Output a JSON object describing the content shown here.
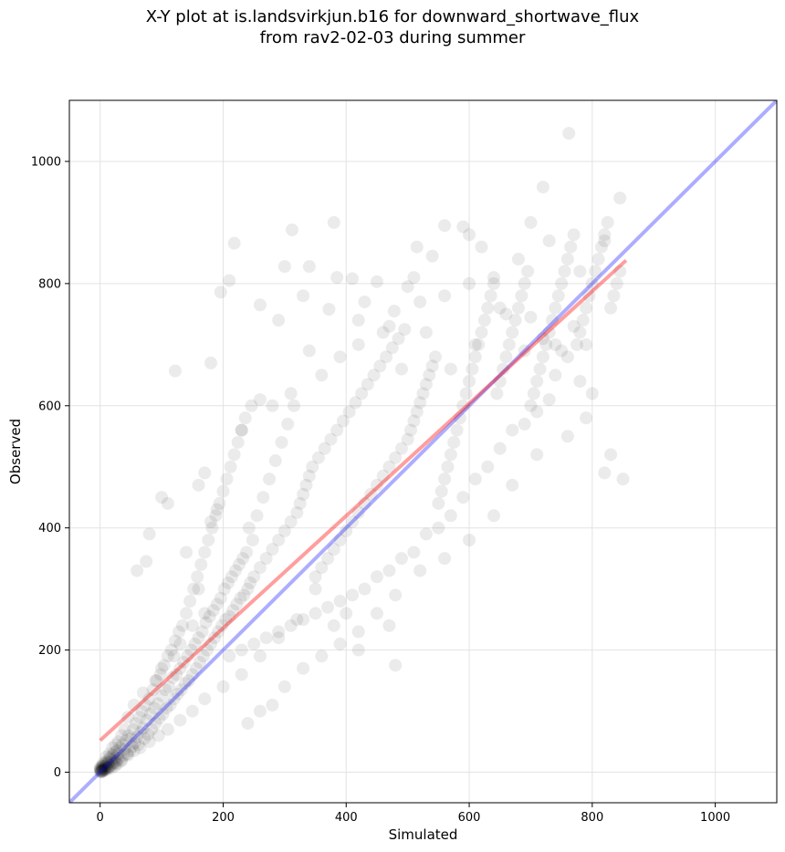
{
  "chart_data": {
    "type": "scatter",
    "title": "X-Y plot at is.landsvirkjun.b16 for downward_shortwave_flux",
    "subtitle": "from rav2-02-03 during summer",
    "xlabel": "Simulated",
    "ylabel": "Observed",
    "xlim": [
      -50,
      1100
    ],
    "ylim": [
      -50,
      1100
    ],
    "xticks": [
      0,
      200,
      400,
      600,
      800,
      1000
    ],
    "yticks": [
      0,
      200,
      400,
      600,
      800,
      1000
    ],
    "grid": true,
    "point_color": "#000000",
    "point_alpha": 0.08,
    "regression_line": {
      "color": "#ff0000",
      "x": [
        0,
        855
      ],
      "y": [
        52,
        838
      ]
    },
    "one_to_one_line": {
      "color": "#0000ff",
      "x": [
        -50,
        1100
      ],
      "y": [
        -50,
        1100
      ]
    },
    "points": [
      [
        0,
        2
      ],
      [
        1,
        5
      ],
      [
        2,
        1
      ],
      [
        3,
        8
      ],
      [
        4,
        3
      ],
      [
        5,
        12
      ],
      [
        6,
        4
      ],
      [
        7,
        10
      ],
      [
        8,
        6
      ],
      [
        9,
        15
      ],
      [
        10,
        8
      ],
      [
        11,
        18
      ],
      [
        12,
        5
      ],
      [
        13,
        14
      ],
      [
        14,
        9
      ],
      [
        15,
        22
      ],
      [
        16,
        11
      ],
      [
        17,
        25
      ],
      [
        18,
        7
      ],
      [
        19,
        20
      ],
      [
        20,
        13
      ],
      [
        21,
        28
      ],
      [
        22,
        16
      ],
      [
        23,
        32
      ],
      [
        24,
        10
      ],
      [
        25,
        24
      ],
      [
        26,
        19
      ],
      [
        27,
        35
      ],
      [
        28,
        14
      ],
      [
        29,
        30
      ],
      [
        30,
        22
      ],
      [
        32,
        40
      ],
      [
        34,
        18
      ],
      [
        36,
        45
      ],
      [
        38,
        27
      ],
      [
        40,
        38
      ],
      [
        42,
        52
      ],
      [
        44,
        30
      ],
      [
        46,
        60
      ],
      [
        48,
        35
      ],
      [
        50,
        55
      ],
      [
        52,
        42
      ],
      [
        54,
        70
      ],
      [
        56,
        48
      ],
      [
        58,
        80
      ],
      [
        60,
        58
      ],
      [
        62,
        45
      ],
      [
        64,
        90
      ],
      [
        66,
        65
      ],
      [
        68,
        100
      ],
      [
        70,
        72
      ],
      [
        72,
        55
      ],
      [
        74,
        110
      ],
      [
        76,
        85
      ],
      [
        78,
        62
      ],
      [
        80,
        120
      ],
      [
        82,
        95
      ],
      [
        84,
        70
      ],
      [
        86,
        135
      ],
      [
        88,
        105
      ],
      [
        90,
        80
      ],
      [
        92,
        150
      ],
      [
        94,
        112
      ],
      [
        96,
        88
      ],
      [
        98,
        160
      ],
      [
        100,
        125
      ],
      [
        102,
        95
      ],
      [
        104,
        175
      ],
      [
        106,
        135
      ],
      [
        108,
        105
      ],
      [
        110,
        190
      ],
      [
        112,
        140
      ],
      [
        114,
        110
      ],
      [
        116,
        200
      ],
      [
        118,
        155
      ],
      [
        120,
        120
      ],
      [
        122,
        215
      ],
      [
        124,
        160
      ],
      [
        126,
        128
      ],
      [
        128,
        230
      ],
      [
        130,
        170
      ],
      [
        132,
        135
      ],
      [
        134,
        240
      ],
      [
        136,
        180
      ],
      [
        138,
        145
      ],
      [
        140,
        260
      ],
      [
        142,
        190
      ],
      [
        144,
        150
      ],
      [
        146,
        280
      ],
      [
        148,
        200
      ],
      [
        150,
        160
      ],
      [
        152,
        300
      ],
      [
        154,
        210
      ],
      [
        156,
        170
      ],
      [
        158,
        320
      ],
      [
        160,
        220
      ],
      [
        162,
        180
      ],
      [
        164,
        340
      ],
      [
        166,
        230
      ],
      [
        168,
        190
      ],
      [
        170,
        360
      ],
      [
        172,
        245
      ],
      [
        174,
        200
      ],
      [
        176,
        380
      ],
      [
        178,
        255
      ],
      [
        180,
        210
      ],
      [
        182,
        400
      ],
      [
        184,
        265
      ],
      [
        186,
        220
      ],
      [
        188,
        420
      ],
      [
        190,
        275
      ],
      [
        192,
        230
      ],
      [
        194,
        440
      ],
      [
        196,
        285
      ],
      [
        198,
        240
      ],
      [
        200,
        460
      ],
      [
        202,
        300
      ],
      [
        204,
        250
      ],
      [
        206,
        480
      ],
      [
        208,
        310
      ],
      [
        210,
        255
      ],
      [
        212,
        500
      ],
      [
        214,
        320
      ],
      [
        216,
        265
      ],
      [
        218,
        520
      ],
      [
        220,
        330
      ],
      [
        222,
        275
      ],
      [
        224,
        540
      ],
      [
        226,
        340
      ],
      [
        228,
        285
      ],
      [
        230,
        560
      ],
      [
        232,
        350
      ],
      [
        234,
        290
      ],
      [
        236,
        580
      ],
      [
        238,
        360
      ],
      [
        240,
        300
      ],
      [
        242,
        400
      ],
      [
        244,
        310
      ],
      [
        246,
        600
      ],
      [
        248,
        380
      ],
      [
        250,
        320
      ],
      [
        255,
        420
      ],
      [
        260,
        335
      ],
      [
        265,
        450
      ],
      [
        270,
        350
      ],
      [
        275,
        480
      ],
      [
        280,
        365
      ],
      [
        285,
        510
      ],
      [
        290,
        380
      ],
      [
        295,
        540
      ],
      [
        300,
        395
      ],
      [
        305,
        570
      ],
      [
        310,
        410
      ],
      [
        315,
        600
      ],
      [
        320,
        425
      ],
      [
        325,
        440
      ],
      [
        330,
        455
      ],
      [
        335,
        470
      ],
      [
        340,
        485
      ],
      [
        345,
        500
      ],
      [
        350,
        320
      ],
      [
        355,
        515
      ],
      [
        360,
        335
      ],
      [
        365,
        530
      ],
      [
        370,
        350
      ],
      [
        375,
        545
      ],
      [
        380,
        365
      ],
      [
        385,
        560
      ],
      [
        390,
        380
      ],
      [
        395,
        575
      ],
      [
        400,
        395
      ],
      [
        405,
        590
      ],
      [
        410,
        410
      ],
      [
        415,
        605
      ],
      [
        420,
        425
      ],
      [
        425,
        620
      ],
      [
        430,
        440
      ],
      [
        435,
        635
      ],
      [
        440,
        455
      ],
      [
        445,
        650
      ],
      [
        450,
        470
      ],
      [
        455,
        665
      ],
      [
        460,
        485
      ],
      [
        465,
        680
      ],
      [
        470,
        500
      ],
      [
        475,
        695
      ],
      [
        480,
        515
      ],
      [
        485,
        710
      ],
      [
        490,
        530
      ],
      [
        495,
        725
      ],
      [
        500,
        545
      ],
      [
        505,
        560
      ],
      [
        510,
        575
      ],
      [
        515,
        590
      ],
      [
        520,
        605
      ],
      [
        525,
        620
      ],
      [
        530,
        635
      ],
      [
        535,
        650
      ],
      [
        540,
        665
      ],
      [
        545,
        680
      ],
      [
        550,
        440
      ],
      [
        555,
        460
      ],
      [
        560,
        480
      ],
      [
        565,
        500
      ],
      [
        570,
        520
      ],
      [
        575,
        540
      ],
      [
        580,
        560
      ],
      [
        585,
        580
      ],
      [
        590,
        600
      ],
      [
        595,
        620
      ],
      [
        600,
        640
      ],
      [
        605,
        660
      ],
      [
        610,
        680
      ],
      [
        615,
        700
      ],
      [
        620,
        720
      ],
      [
        625,
        740
      ],
      [
        630,
        760
      ],
      [
        635,
        780
      ],
      [
        640,
        800
      ],
      [
        645,
        620
      ],
      [
        650,
        640
      ],
      [
        655,
        660
      ],
      [
        660,
        680
      ],
      [
        665,
        700
      ],
      [
        670,
        720
      ],
      [
        675,
        740
      ],
      [
        680,
        760
      ],
      [
        685,
        780
      ],
      [
        690,
        800
      ],
      [
        695,
        820
      ],
      [
        700,
        600
      ],
      [
        705,
        620
      ],
      [
        710,
        640
      ],
      [
        715,
        660
      ],
      [
        720,
        680
      ],
      [
        725,
        700
      ],
      [
        730,
        720
      ],
      [
        735,
        740
      ],
      [
        740,
        760
      ],
      [
        745,
        780
      ],
      [
        750,
        800
      ],
      [
        755,
        820
      ],
      [
        760,
        840
      ],
      [
        765,
        860
      ],
      [
        770,
        880
      ],
      [
        775,
        700
      ],
      [
        780,
        720
      ],
      [
        785,
        740
      ],
      [
        790,
        760
      ],
      [
        795,
        780
      ],
      [
        800,
        800
      ],
      [
        805,
        820
      ],
      [
        810,
        840
      ],
      [
        815,
        860
      ],
      [
        820,
        880
      ],
      [
        825,
        900
      ],
      [
        830,
        760
      ],
      [
        835,
        780
      ],
      [
        840,
        800
      ],
      [
        845,
        820
      ],
      [
        122,
        657
      ],
      [
        380,
        900
      ],
      [
        312,
        888
      ],
      [
        218,
        866
      ],
      [
        196,
        786
      ],
      [
        762,
        1046
      ],
      [
        720,
        958
      ],
      [
        845,
        940
      ],
      [
        700,
        900
      ],
      [
        590,
        893
      ],
      [
        515,
        860
      ],
      [
        510,
        810
      ],
      [
        540,
        845
      ],
      [
        450,
        803
      ],
      [
        500,
        795
      ],
      [
        410,
        808
      ],
      [
        300,
        828
      ],
      [
        340,
        828
      ],
      [
        385,
        810
      ],
      [
        430,
        770
      ],
      [
        470,
        730
      ],
      [
        210,
        805
      ],
      [
        260,
        765
      ],
      [
        290,
        740
      ],
      [
        330,
        780
      ],
      [
        372,
        758
      ],
      [
        420,
        740
      ],
      [
        478,
        755
      ],
      [
        520,
        770
      ],
      [
        560,
        780
      ],
      [
        600,
        800
      ],
      [
        640,
        810
      ],
      [
        680,
        840
      ],
      [
        730,
        870
      ],
      [
        780,
        820
      ],
      [
        820,
        870
      ],
      [
        180,
        670
      ],
      [
        230,
        560
      ],
      [
        260,
        610
      ],
      [
        280,
        600
      ],
      [
        310,
        620
      ],
      [
        340,
        690
      ],
      [
        360,
        650
      ],
      [
        390,
        680
      ],
      [
        420,
        700
      ],
      [
        460,
        720
      ],
      [
        490,
        660
      ],
      [
        530,
        720
      ],
      [
        570,
        660
      ],
      [
        610,
        700
      ],
      [
        650,
        760
      ],
      [
        690,
        690
      ],
      [
        740,
        650
      ],
      [
        790,
        580
      ],
      [
        830,
        520
      ],
      [
        850,
        480
      ],
      [
        820,
        490
      ],
      [
        760,
        550
      ],
      [
        710,
        520
      ],
      [
        670,
        470
      ],
      [
        640,
        420
      ],
      [
        600,
        380
      ],
      [
        560,
        350
      ],
      [
        520,
        330
      ],
      [
        480,
        290
      ],
      [
        450,
        260
      ],
      [
        420,
        230
      ],
      [
        390,
        210
      ],
      [
        360,
        190
      ],
      [
        330,
        170
      ],
      [
        300,
        140
      ],
      [
        280,
        110
      ],
      [
        260,
        100
      ],
      [
        240,
        80
      ],
      [
        480,
        175
      ],
      [
        470,
        240
      ],
      [
        420,
        200
      ],
      [
        400,
        260
      ],
      [
        380,
        240
      ],
      [
        350,
        300
      ],
      [
        320,
        250
      ],
      [
        290,
        220
      ],
      [
        260,
        190
      ],
      [
        230,
        160
      ],
      [
        200,
        140
      ],
      [
        170,
        120
      ],
      [
        150,
        100
      ],
      [
        130,
        85
      ],
      [
        110,
        70
      ],
      [
        95,
        60
      ],
      [
        80,
        50
      ],
      [
        65,
        40
      ],
      [
        55,
        35
      ],
      [
        45,
        28
      ],
      [
        35,
        20
      ],
      [
        25,
        15
      ],
      [
        15,
        8
      ],
      [
        8,
        3
      ],
      [
        4,
        1
      ],
      [
        2,
        0
      ],
      [
        60,
        330
      ],
      [
        75,
        345
      ],
      [
        80,
        390
      ],
      [
        100,
        450
      ],
      [
        110,
        440
      ],
      [
        140,
        360
      ],
      [
        160,
        470
      ],
      [
        170,
        490
      ],
      [
        180,
        410
      ],
      [
        190,
        430
      ],
      [
        160,
        300
      ],
      [
        170,
        260
      ],
      [
        150,
        240
      ],
      [
        130,
        210
      ],
      [
        120,
        190
      ],
      [
        100,
        170
      ],
      [
        90,
        150
      ],
      [
        70,
        130
      ],
      [
        55,
        110
      ],
      [
        45,
        90
      ],
      [
        40,
        70
      ],
      [
        35,
        60
      ],
      [
        30,
        50
      ],
      [
        25,
        45
      ],
      [
        20,
        40
      ],
      [
        15,
        30
      ],
      [
        10,
        25
      ],
      [
        5,
        15
      ],
      [
        3,
        10
      ],
      [
        1,
        6
      ],
      [
        0,
        8
      ],
      [
        0,
        4
      ],
      [
        1,
        1
      ],
      [
        2,
        3
      ],
      [
        3,
        2
      ],
      [
        5,
        6
      ],
      [
        7,
        4
      ],
      [
        9,
        11
      ],
      [
        11,
        7
      ],
      [
        13,
        16
      ],
      [
        560,
        895
      ],
      [
        600,
        880
      ],
      [
        620,
        860
      ],
      [
        660,
        750
      ],
      [
        700,
        745
      ],
      [
        720,
        710
      ],
      [
        740,
        700
      ],
      [
        760,
        680
      ],
      [
        780,
        640
      ],
      [
        800,
        620
      ],
      [
        790,
        700
      ],
      [
        770,
        730
      ],
      [
        750,
        690
      ],
      [
        730,
        610
      ],
      [
        710,
        590
      ],
      [
        690,
        570
      ],
      [
        670,
        560
      ],
      [
        650,
        530
      ],
      [
        630,
        500
      ],
      [
        610,
        480
      ],
      [
        590,
        450
      ],
      [
        570,
        420
      ],
      [
        550,
        400
      ],
      [
        530,
        390
      ],
      [
        510,
        360
      ],
      [
        490,
        350
      ],
      [
        470,
        330
      ],
      [
        450,
        320
      ],
      [
        430,
        300
      ],
      [
        410,
        290
      ],
      [
        390,
        280
      ],
      [
        370,
        270
      ],
      [
        350,
        260
      ],
      [
        330,
        250
      ],
      [
        310,
        240
      ],
      [
        290,
        230
      ],
      [
        270,
        220
      ],
      [
        250,
        210
      ],
      [
        230,
        200
      ],
      [
        210,
        190
      ]
    ]
  }
}
